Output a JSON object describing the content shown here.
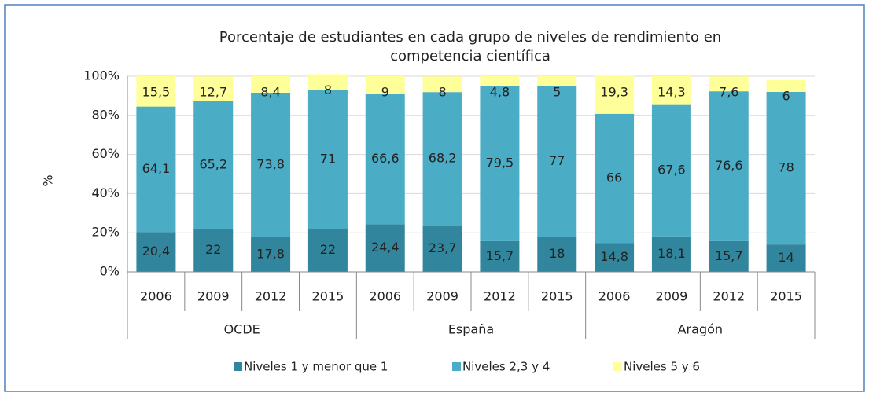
{
  "chart_data": {
    "type": "stacked_bar",
    "title": "Porcentaje de estudiantes en cada grupo de niveles de rendimiento en competencia científica",
    "y_label": "%",
    "categories": [
      "2006",
      "2009",
      "2012",
      "2015",
      "2006",
      "2009",
      "2012",
      "2015",
      "2006",
      "2009",
      "2012",
      "2015"
    ],
    "category_groups": [
      "OCDE",
      "España",
      "Aragón"
    ],
    "ylim": [
      0,
      100
    ],
    "yticks": [
      {
        "value": 0,
        "label": "0%"
      },
      {
        "value": 20,
        "label": "20%"
      },
      {
        "value": 40,
        "label": "40%"
      },
      {
        "value": 60,
        "label": "60%"
      },
      {
        "value": 80,
        "label": "80%"
      },
      {
        "value": 100,
        "label": "100%"
      }
    ],
    "grid": true,
    "legend": "bottom",
    "series": [
      {
        "name": "Niveles 1 y menor que 1",
        "color": "#31859c",
        "values": [
          20.4,
          22,
          17.8,
          22,
          24.4,
          23.7,
          15.7,
          18,
          14.8,
          18.1,
          15.7,
          14
        ],
        "value_labels": [
          "20,4",
          "22",
          "17,8",
          "22",
          "24,4",
          "23,7",
          "15,7",
          "18",
          "14,8",
          "18,1",
          "15,7",
          "14"
        ]
      },
      {
        "name": "Niveles 2,3 y 4",
        "color": "#4bacc6",
        "values": [
          64.1,
          65.2,
          73.8,
          71,
          66.6,
          68.2,
          79.5,
          77,
          66,
          67.6,
          76.6,
          78
        ],
        "value_labels": [
          "64,1",
          "65,2",
          "73,8",
          "71",
          "66,6",
          "68,2",
          "79,5",
          "77",
          "66",
          "67,6",
          "76,6",
          "78"
        ]
      },
      {
        "name": "Niveles 5 y 6",
        "color": "#ffff99",
        "values": [
          15.5,
          12.7,
          8.4,
          8,
          9,
          8,
          4.8,
          5,
          19.3,
          14.3,
          7.6,
          6
        ],
        "value_labels": [
          "15,5",
          "12,7",
          "8,4",
          "8",
          "9",
          "8",
          "4,8",
          "5",
          "19,3",
          "14,3",
          "7,6",
          "6"
        ]
      }
    ]
  }
}
